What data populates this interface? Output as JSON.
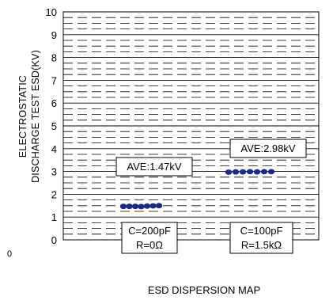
{
  "chart_data": {
    "type": "scatter",
    "title": "",
    "xlabel": "ESD DISPERSION MAP",
    "ylabel": [
      "ELECTROSTATIC",
      "DISCHARGE TEST ESD(KV)"
    ],
    "ylim": [
      0,
      10
    ],
    "yticks": [
      "0",
      "1",
      "2",
      "3",
      "4",
      "5",
      "6",
      "7",
      "8",
      "9",
      "10"
    ],
    "grid": "dashed",
    "outside_label": "0",
    "point_color": "#1a2a8c",
    "groups": [
      {
        "values": [
          1.47,
          1.47,
          1.47,
          1.46,
          1.48,
          1.49,
          1.5
        ],
        "average_label": "AVE:1.47kV",
        "condition_label": [
          "C=200pF",
          "R=0Ω"
        ]
      },
      {
        "values": [
          2.97,
          2.98,
          2.98,
          2.99,
          2.98,
          2.99,
          2.99
        ],
        "average_label": "AVE:2.98kV",
        "condition_label": [
          "C=100pF",
          "R=1.5kΩ"
        ]
      }
    ]
  }
}
